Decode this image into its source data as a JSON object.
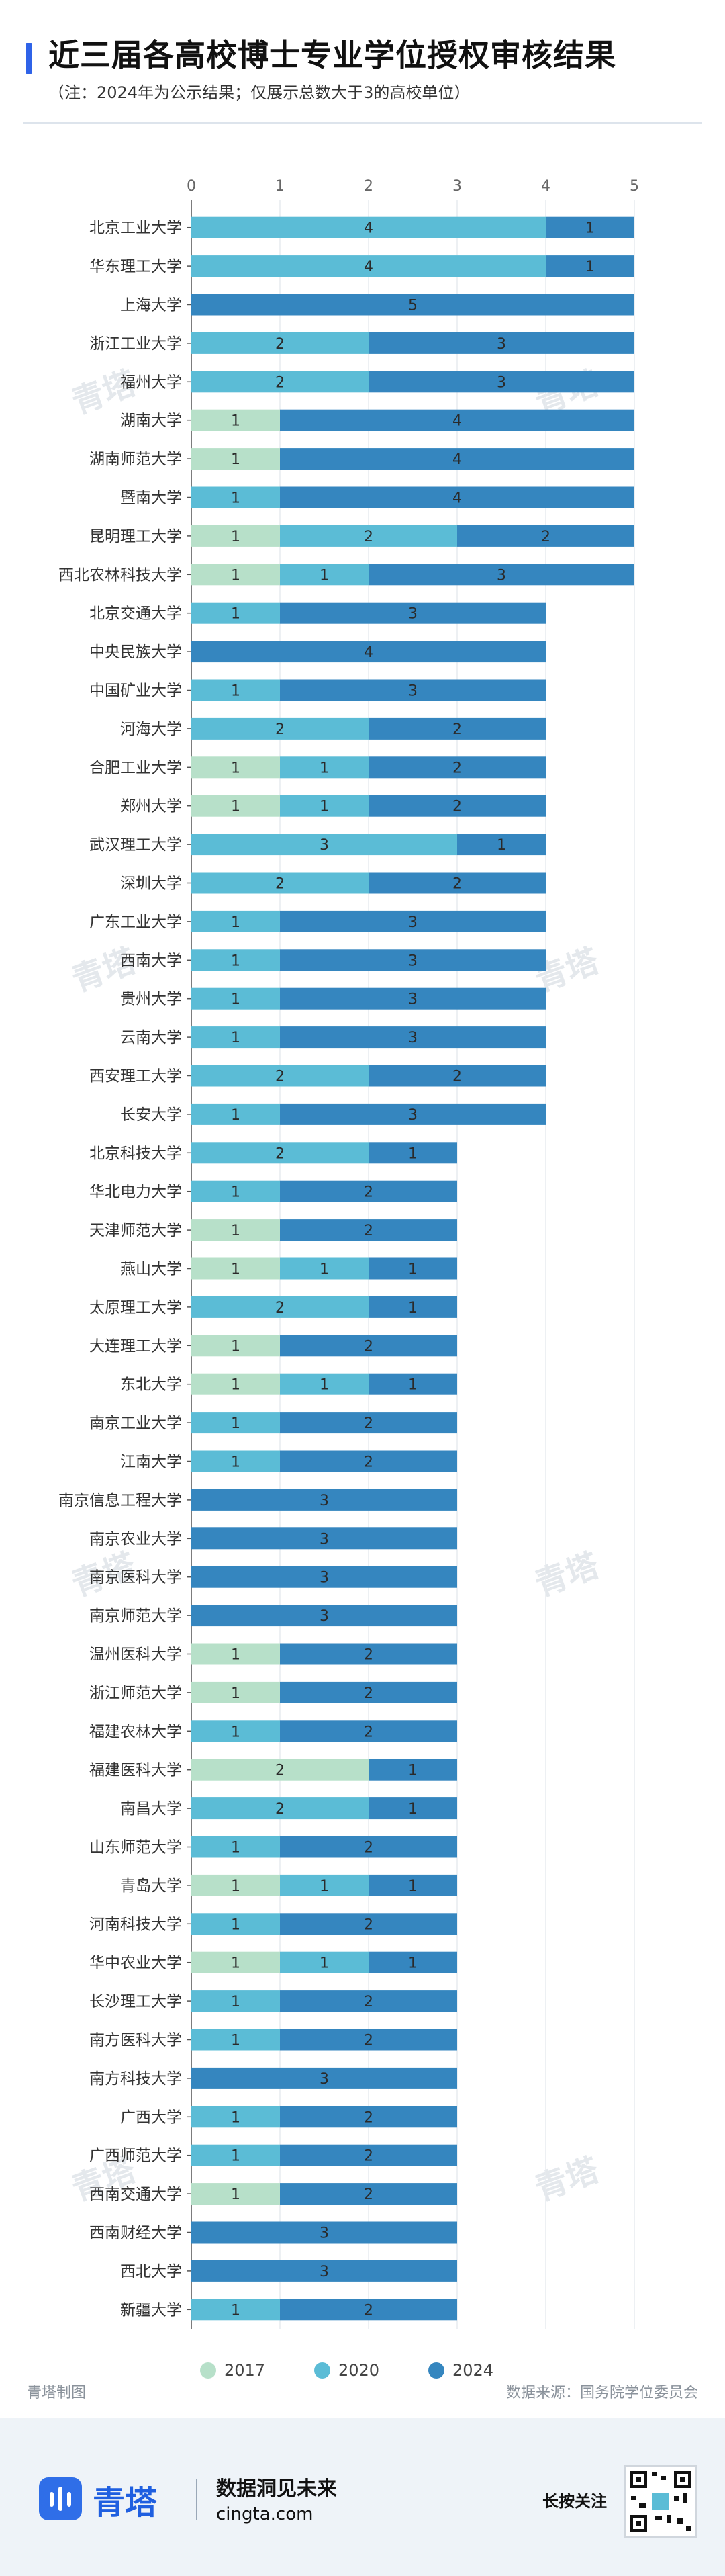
{
  "header": {
    "title": "近三届各高校博士专业学位授权审核结果",
    "subtitle": "（注：2024年为公示结果；仅展示总数大于3的高校单位）"
  },
  "credits": {
    "left": "青塔制图",
    "right": "数据来源：国务院学位委员会"
  },
  "footer": {
    "brand": "青塔",
    "slogan": "数据洞见未来",
    "site": "cingta.com",
    "follow": "长按关注"
  },
  "watermark": "青塔",
  "colors": {
    "s2017": "#b7e0c9",
    "s2020": "#5bbcd6",
    "s2024": "#3586bf",
    "accent": "#2f63e8",
    "brand": "#1f5fe0"
  },
  "chart_data": {
    "type": "bar",
    "orientation": "horizontal",
    "stacked": true,
    "title": "",
    "xlabel": "",
    "ylabel": "",
    "xlim": [
      0,
      5
    ],
    "xticks": [
      "0",
      "1",
      "2",
      "3",
      "4",
      "5"
    ],
    "grid": true,
    "legend": "bottom",
    "categories": [
      "北京工业大学",
      "华东理工大学",
      "上海大学",
      "浙江工业大学",
      "福州大学",
      "湖南大学",
      "湖南师范大学",
      "暨南大学",
      "昆明理工大学",
      "西北农林科技大学",
      "北京交通大学",
      "中央民族大学",
      "中国矿业大学",
      "河海大学",
      "合肥工业大学",
      "郑州大学",
      "武汉理工大学",
      "深圳大学",
      "广东工业大学",
      "西南大学",
      "贵州大学",
      "云南大学",
      "西安理工大学",
      "长安大学",
      "北京科技大学",
      "华北电力大学",
      "天津师范大学",
      "燕山大学",
      "太原理工大学",
      "大连理工大学",
      "东北大学",
      "南京工业大学",
      "江南大学",
      "南京信息工程大学",
      "南京农业大学",
      "南京医科大学",
      "南京师范大学",
      "温州医科大学",
      "浙江师范大学",
      "福建农林大学",
      "福建医科大学",
      "南昌大学",
      "山东师范大学",
      "青岛大学",
      "河南科技大学",
      "华中农业大学",
      "长沙理工大学",
      "南方医科大学",
      "南方科技大学",
      "广西大学",
      "广西师范大学",
      "西南交通大学",
      "西南财经大学",
      "西北大学",
      "新疆大学"
    ],
    "series": [
      {
        "name": "2017",
        "values": [
          0,
          0,
          0,
          0,
          0,
          1,
          1,
          0,
          1,
          1,
          0,
          0,
          0,
          0,
          1,
          1,
          0,
          0,
          0,
          0,
          0,
          0,
          0,
          0,
          0,
          0,
          1,
          1,
          0,
          1,
          1,
          0,
          0,
          0,
          0,
          0,
          0,
          1,
          1,
          0,
          2,
          0,
          0,
          1,
          0,
          1,
          0,
          0,
          0,
          0,
          0,
          1,
          0,
          0,
          0
        ]
      },
      {
        "name": "2020",
        "values": [
          4,
          4,
          0,
          2,
          2,
          0,
          0,
          1,
          2,
          1,
          1,
          0,
          1,
          2,
          1,
          1,
          3,
          2,
          1,
          1,
          1,
          1,
          2,
          1,
          2,
          1,
          0,
          1,
          2,
          0,
          1,
          1,
          1,
          0,
          0,
          0,
          0,
          0,
          0,
          1,
          0,
          2,
          1,
          1,
          1,
          1,
          1,
          1,
          0,
          1,
          1,
          0,
          0,
          0,
          1
        ]
      },
      {
        "name": "2024",
        "values": [
          1,
          1,
          5,
          3,
          3,
          4,
          4,
          4,
          2,
          3,
          3,
          4,
          3,
          2,
          2,
          2,
          1,
          2,
          3,
          3,
          3,
          3,
          2,
          3,
          1,
          2,
          2,
          1,
          1,
          2,
          1,
          2,
          2,
          3,
          3,
          3,
          3,
          2,
          2,
          2,
          1,
          1,
          2,
          1,
          2,
          1,
          2,
          2,
          3,
          2,
          2,
          2,
          3,
          3,
          2
        ]
      }
    ]
  }
}
